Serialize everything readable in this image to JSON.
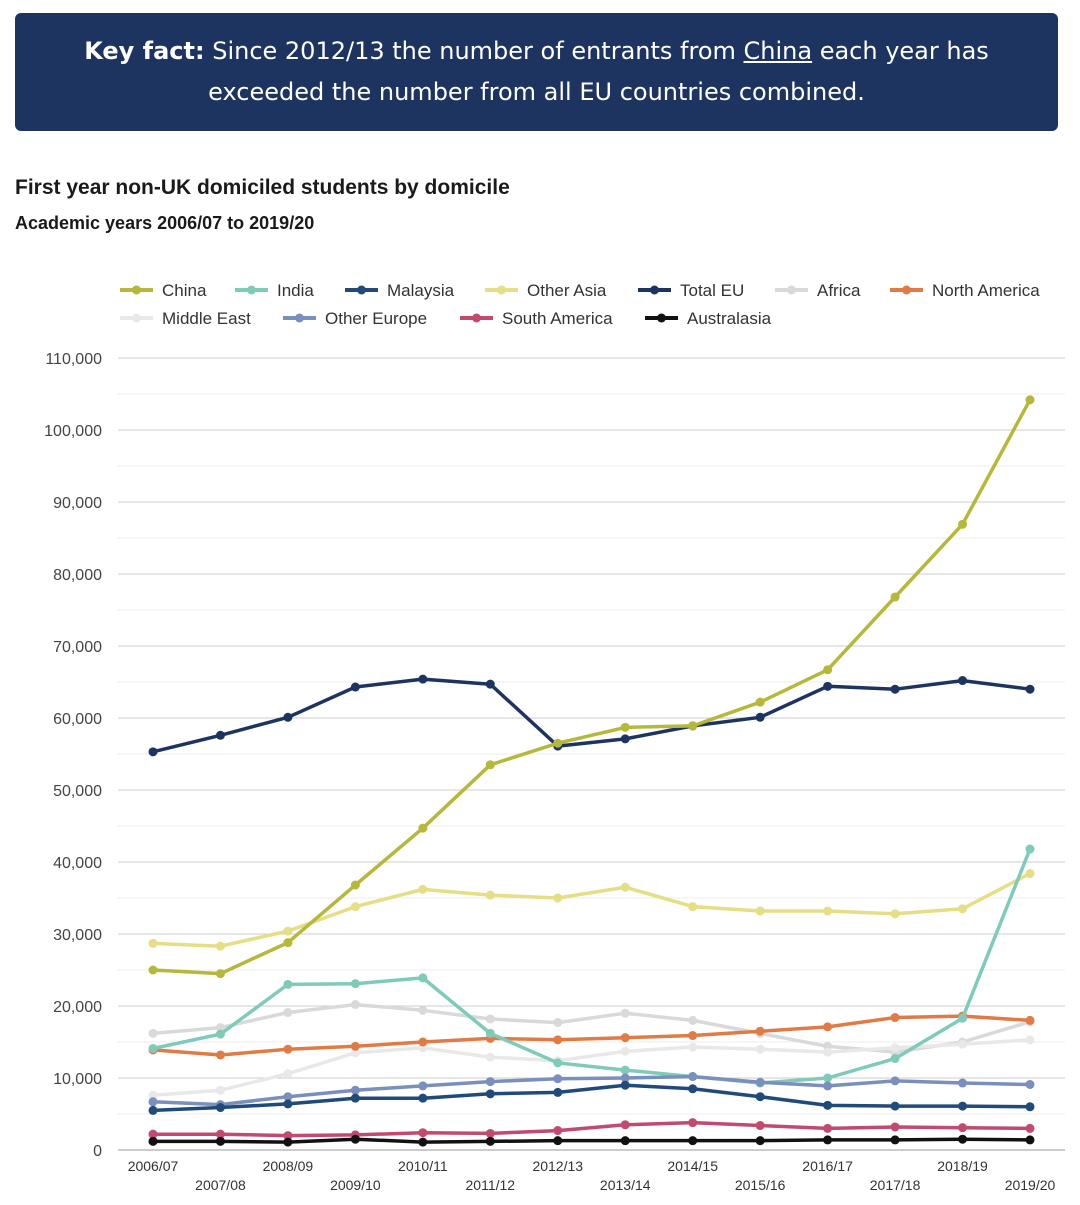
{
  "key_fact": {
    "label": "Key fact:",
    "text_before": " Since 2012/13 the number of entrants from ",
    "link": "China",
    "text_after": " each year has exceeded the number from all EU countries combined."
  },
  "chart_data": {
    "type": "line",
    "title": "First year non-UK domiciled students by domicile",
    "subtitle": "Academic years 2006/07 to 2019/20",
    "xlabel": "",
    "ylabel": "",
    "ylim": [
      0,
      110000
    ],
    "y_ticks": [
      0,
      10000,
      20000,
      30000,
      40000,
      50000,
      60000,
      70000,
      80000,
      90000,
      100000,
      110000
    ],
    "y_tick_labels": [
      "0",
      "10,000",
      "20,000",
      "30,000",
      "40,000",
      "50,000",
      "60,000",
      "70,000",
      "80,000",
      "90,000",
      "100,000",
      "110,000"
    ],
    "grid": true,
    "legend_position": "top",
    "categories": [
      "2006/07",
      "2007/08",
      "2008/09",
      "2009/10",
      "2010/11",
      "2011/12",
      "2012/13",
      "2013/14",
      "2014/15",
      "2015/16",
      "2016/17",
      "2017/18",
      "2018/19",
      "2019/20"
    ],
    "series": [
      {
        "name": "Africa",
        "color": "#d9d9d9",
        "values": [
          16200,
          17000,
          19100,
          20200,
          19400,
          18200,
          17700,
          19000,
          18000,
          16200,
          14400,
          13600,
          15000,
          17800
        ]
      },
      {
        "name": "Middle East",
        "color": "#e8e8e8",
        "values": [
          7600,
          8300,
          10600,
          13500,
          14200,
          12900,
          12400,
          13700,
          14300,
          14000,
          13600,
          14200,
          14700,
          15300
        ]
      },
      {
        "name": "North America",
        "color": "#e07b45",
        "values": [
          13900,
          13200,
          14000,
          14400,
          15000,
          15500,
          15300,
          15600,
          15900,
          16500,
          17100,
          18400,
          18600,
          18000
        ]
      },
      {
        "name": "Other Asia",
        "color": "#e6de84",
        "values": [
          28700,
          28300,
          30400,
          33800,
          36200,
          35400,
          35000,
          36500,
          33800,
          33200,
          33200,
          32800,
          33500,
          38400
        ]
      },
      {
        "name": "India",
        "color": "#7fcbba",
        "values": [
          14100,
          16100,
          23000,
          23100,
          23900,
          16200,
          12100,
          11100,
          10200,
          9300,
          10000,
          12700,
          18300,
          41800
        ]
      },
      {
        "name": "Other Europe",
        "color": "#7a8fbb",
        "values": [
          6700,
          6300,
          7400,
          8300,
          8900,
          9500,
          9900,
          10000,
          10200,
          9400,
          8900,
          9600,
          9300,
          9100
        ]
      },
      {
        "name": "Malaysia",
        "color": "#1f4a7a",
        "values": [
          5500,
          5900,
          6400,
          7200,
          7200,
          7800,
          8000,
          9000,
          8500,
          7400,
          6200,
          6100,
          6100,
          6000
        ]
      },
      {
        "name": "South America",
        "color": "#c24a6e",
        "values": [
          2200,
          2200,
          2000,
          2100,
          2400,
          2300,
          2700,
          3500,
          3800,
          3400,
          3000,
          3200,
          3100,
          3000
        ]
      },
      {
        "name": "Australasia",
        "color": "#111111",
        "values": [
          1200,
          1200,
          1100,
          1500,
          1100,
          1200,
          1300,
          1300,
          1300,
          1300,
          1400,
          1400,
          1500,
          1400
        ]
      },
      {
        "name": "Total EU",
        "color": "#1d3461",
        "values": [
          55300,
          57600,
          60100,
          64300,
          65400,
          64700,
          56100,
          57100,
          58900,
          60100,
          64400,
          64000,
          65200,
          64000
        ]
      },
      {
        "name": "China",
        "color": "#b6b83a",
        "values": [
          25000,
          24500,
          28800,
          36800,
          44700,
          53500,
          56500,
          58700,
          58900,
          62200,
          66700,
          76800,
          86900,
          104200
        ]
      }
    ],
    "legend": [
      [
        "China",
        "India",
        "Malaysia",
        "Other Asia",
        "Total EU",
        "Africa",
        "North America"
      ],
      [
        "Middle East",
        "Other Europe",
        "South America",
        "Australasia"
      ]
    ]
  }
}
